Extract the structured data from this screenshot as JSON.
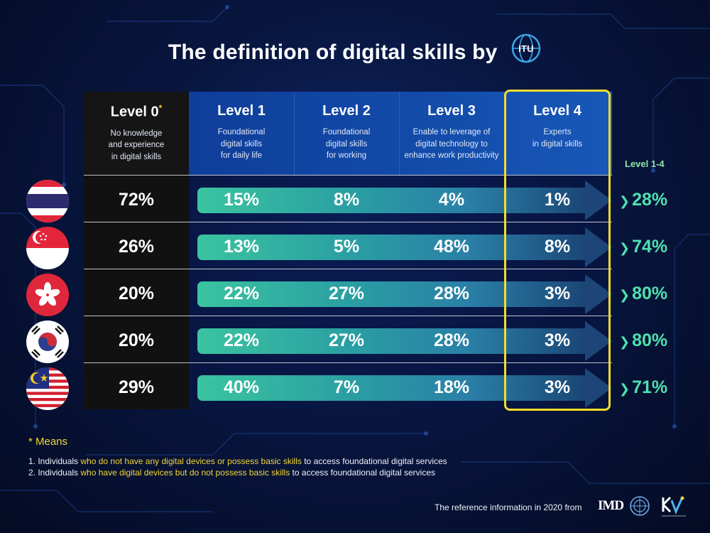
{
  "title": "The definition of digital skills by",
  "logo_text": "ITU",
  "columns": [
    {
      "label": "Level 0",
      "marker": "*",
      "desc": [
        "No knowledge",
        "and experience",
        "in digital skills"
      ]
    },
    {
      "label": "Level 1",
      "desc": [
        "Foundational",
        "digital skills",
        "for daily life"
      ]
    },
    {
      "label": "Level 2",
      "desc": [
        "Foundational",
        "digital skills",
        "for working"
      ]
    },
    {
      "label": "Level 3",
      "desc": [
        "Enable to leverage of",
        "digital technology to",
        "enhance work productivity"
      ]
    },
    {
      "label": "Level 4",
      "desc": [
        "Experts",
        "in digital skills"
      ]
    }
  ],
  "total_label": "Level 1-4",
  "rows": [
    {
      "flag": "thailand-flag",
      "values": [
        "72%",
        "15%",
        "8%",
        "4%",
        "1%"
      ],
      "total": "28%"
    },
    {
      "flag": "singapore-flag",
      "values": [
        "26%",
        "13%",
        "5%",
        "48%",
        "8%"
      ],
      "total": "74%"
    },
    {
      "flag": "hongkong-flag",
      "values": [
        "20%",
        "22%",
        "27%",
        "28%",
        "3%"
      ],
      "total": "80%"
    },
    {
      "flag": "korea-flag",
      "values": [
        "20%",
        "22%",
        "27%",
        "28%",
        "3%"
      ],
      "total": "80%"
    },
    {
      "flag": "malaysia-flag",
      "values": [
        "29%",
        "40%",
        "7%",
        "18%",
        "3%"
      ],
      "total": "71%"
    }
  ],
  "footnote": {
    "title": "* Means",
    "items": [
      {
        "prefix": "1. Individuals ",
        "highlight": "who do not have any digital devices or possess basic skills",
        "suffix": " to access foundational digital services"
      },
      {
        "prefix": "2. Individuals ",
        "highlight": "who have digital devices but do not possess basic skills",
        "suffix": " to access foundational digital services"
      }
    ]
  },
  "reference": "The reference information in 2020 from",
  "ref_logo_text": "IMD",
  "colors": {
    "highlight": "#f4dc28",
    "total": "#4fe0b0",
    "accent": "#f3d637"
  }
}
